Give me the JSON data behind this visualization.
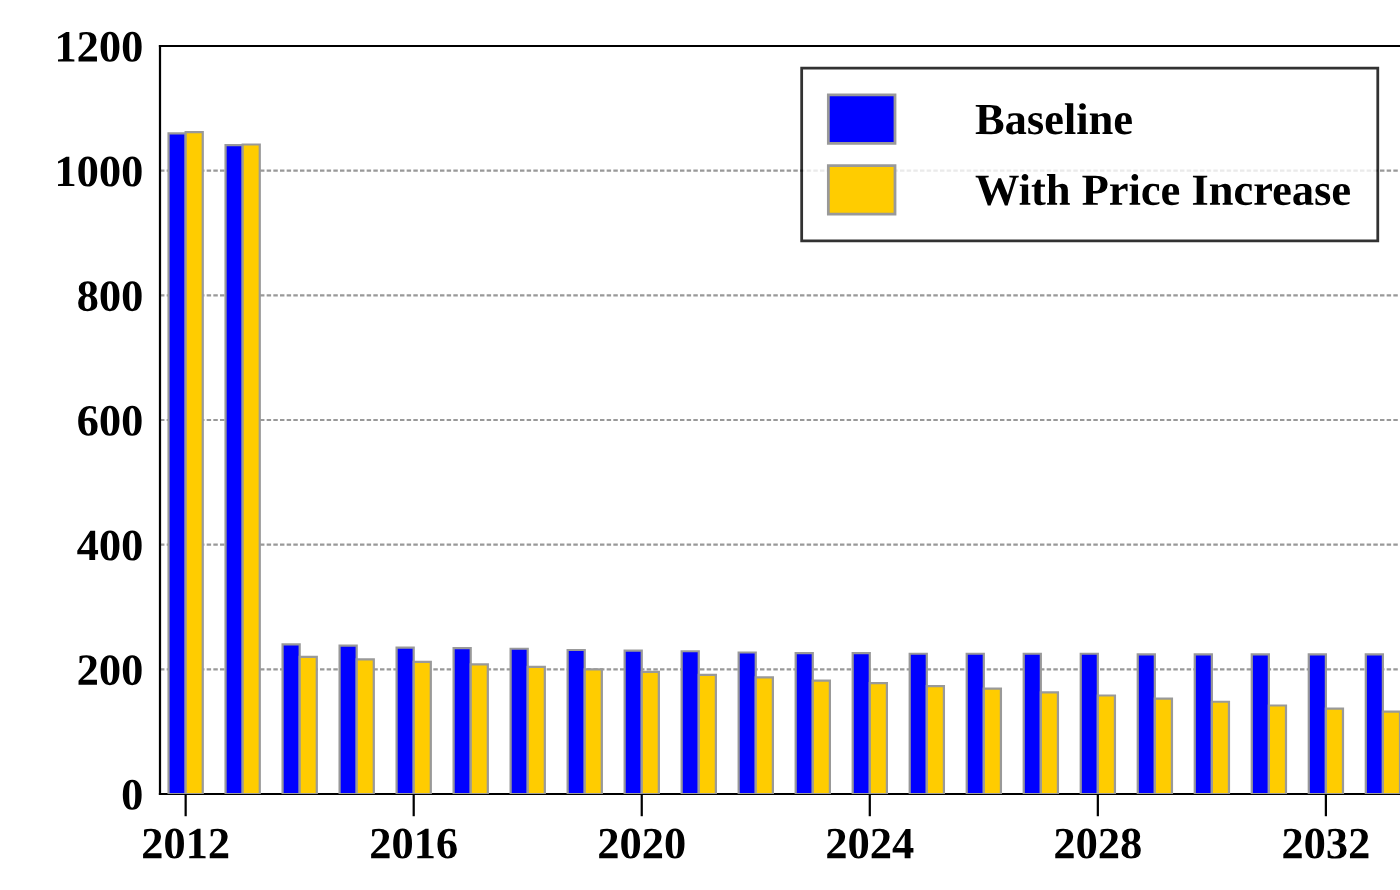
{
  "chart_data": {
    "type": "bar",
    "x": [
      2012,
      2013,
      2014,
      2015,
      2016,
      2017,
      2018,
      2019,
      2020,
      2021,
      2022,
      2023,
      2024,
      2025,
      2026,
      2027,
      2028,
      2029,
      2030,
      2031,
      2032,
      2033
    ],
    "series": [
      {
        "name": "Baseline",
        "color": "#0000ff",
        "values": [
          1060,
          1041,
          240,
          238,
          235,
          234,
          233,
          231,
          230,
          229,
          227,
          226,
          226,
          225,
          225,
          225,
          225,
          224,
          224,
          224,
          224,
          224
        ]
      },
      {
        "name": "With Price Increase",
        "color": "#ffcc00",
        "values": [
          1062,
          1042,
          220,
          216,
          212,
          208,
          204,
          200,
          196,
          191,
          187,
          182,
          178,
          173,
          169,
          163,
          158,
          153,
          148,
          142,
          137,
          132
        ]
      }
    ],
    "xlim": [
      2011.55,
      2033.3
    ],
    "xticks": [
      2012,
      2016,
      2020,
      2024,
      2028,
      2032
    ],
    "ylim": [
      0,
      1200
    ],
    "yticks": [
      0,
      200,
      400,
      600,
      800,
      1000,
      1200
    ],
    "grid": "y",
    "legend": "top right"
  }
}
